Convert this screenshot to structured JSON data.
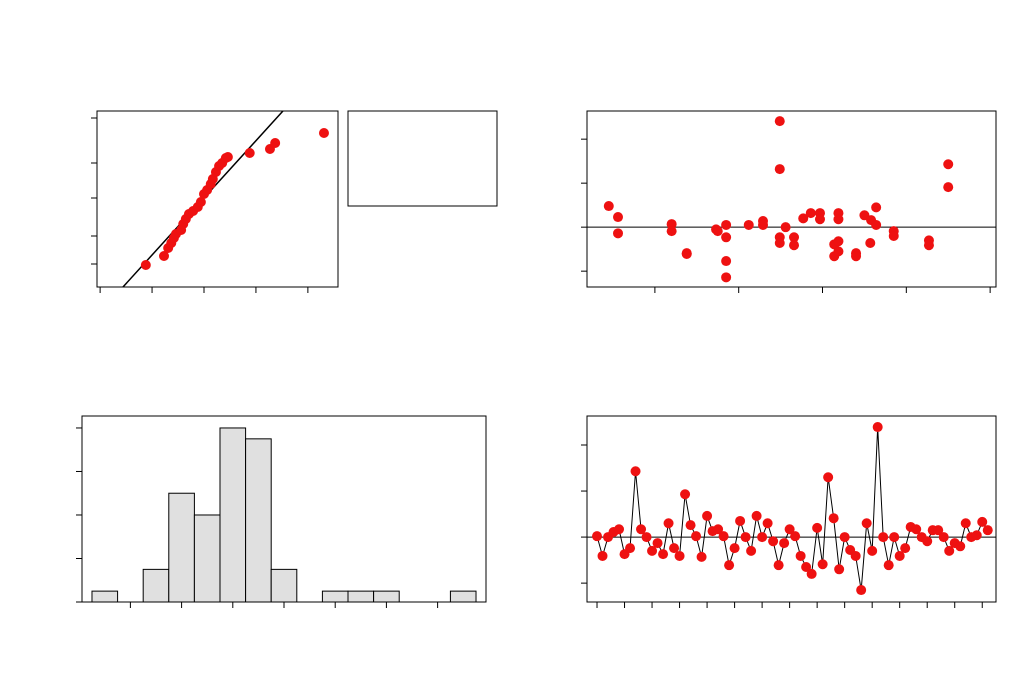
{
  "chart_data": [
    {
      "type": "probability",
      "color": "#ee1111",
      "x": [
        0.88,
        1.23,
        1.31,
        1.37,
        1.42,
        1.46,
        1.56,
        1.6,
        1.65,
        1.71,
        1.79,
        1.88,
        1.94,
        2.0,
        2.06,
        2.13,
        2.17,
        2.23,
        2.29,
        2.35,
        2.42,
        2.46,
        2.88,
        3.27,
        3.37,
        4.31
      ],
      "y": [
        2.2,
        3.1,
        3.9,
        4.4,
        4.9,
        5.3,
        5.7,
        6.3,
        6.8,
        7.3,
        7.6,
        8.0,
        8.5,
        9.3,
        9.7,
        10.3,
        10.8,
        11.5,
        12.1,
        12.4,
        12.9,
        13.0,
        13.4,
        13.8,
        14.4,
        15.4
      ],
      "fit_line": {
        "x": [
          0.44,
          3.52
        ],
        "y": [
          0,
          17.6
        ]
      },
      "xlim": [
        -0.06,
        4.58
      ],
      "ylim": [
        0,
        17.6
      ],
      "xticks": [
        0,
        1,
        2,
        3,
        4
      ],
      "yticks": [
        2.3,
        5.1,
        8.9,
        12.4,
        16.9
      ]
    },
    {
      "type": "scatter",
      "color": "#ee1111",
      "x": [
        0.45,
        0.56,
        0.56,
        1.2,
        1.2,
        1.38,
        1.38,
        1.73,
        1.75,
        1.85,
        1.85,
        1.85,
        1.85,
        2.12,
        2.29,
        2.29,
        2.49,
        2.49,
        2.49,
        2.49,
        2.56,
        2.66,
        2.66,
        2.77,
        2.86,
        2.97,
        2.97,
        3.14,
        3.14,
        3.19,
        3.19,
        3.19,
        3.19,
        3.4,
        3.4,
        3.5,
        3.57,
        3.58,
        3.64,
        3.64,
        3.85,
        3.85,
        4.27,
        4.27,
        4.5,
        4.5
      ],
      "y": [
        0.48,
        0.23,
        -0.14,
        0.07,
        -0.09,
        -0.59,
        -0.61,
        -0.05,
        -0.09,
        0.05,
        -0.23,
        -0.77,
        -1.14,
        0.05,
        0.14,
        0.05,
        2.41,
        1.32,
        -0.23,
        -0.36,
        0,
        -0.23,
        -0.41,
        0.2,
        0.32,
        0.32,
        0.18,
        -0.39,
        -0.66,
        0.32,
        0.18,
        -0.32,
        -0.55,
        -0.59,
        -0.66,
        0.27,
        -0.36,
        0.16,
        0.45,
        0.05,
        -0.09,
        -0.2,
        -0.3,
        -0.41,
        1.43,
        0.91
      ],
      "xlim": [
        0.19,
        5.07
      ],
      "ylim": [
        -1.36,
        2.64
      ],
      "xticks": [
        1,
        2,
        3,
        4,
        5
      ],
      "yticks": [
        -1,
        0,
        1,
        2
      ]
    },
    {
      "type": "histogram",
      "color": "#e0e0e0",
      "bins": [
        0,
        1,
        2,
        3,
        4,
        5,
        6,
        7,
        8,
        9,
        10,
        11,
        12,
        13,
        14,
        15
      ],
      "counts": [
        1,
        0,
        3,
        10,
        8,
        16,
        15,
        3,
        0,
        1,
        1,
        1,
        0,
        0,
        1
      ],
      "xlim": [
        -0.39,
        15.39
      ],
      "ylim": [
        0,
        17.1
      ],
      "xticks": [
        1.5,
        3.5,
        5.5,
        7.5,
        9.5,
        11.5,
        13.5
      ],
      "yticks": [
        0,
        4,
        8,
        12,
        16
      ]
    },
    {
      "type": "line",
      "color": "#ee1111",
      "x": [
        1,
        2,
        3,
        4,
        5,
        6,
        7,
        8,
        9,
        10,
        11,
        12,
        13,
        14,
        15,
        16,
        17,
        18,
        19,
        20,
        21,
        22,
        23,
        24,
        25,
        26,
        27,
        28,
        29,
        30,
        31,
        32,
        33,
        34,
        35,
        36,
        37,
        38,
        39,
        40,
        41,
        42,
        43,
        44,
        45,
        46,
        47,
        48,
        49,
        50,
        51,
        52,
        53,
        54,
        55,
        56,
        57,
        58,
        59,
        60,
        61,
        62,
        63,
        64,
        65,
        66,
        67,
        68,
        69,
        70,
        71,
        72
      ],
      "y": [
        0.02,
        -0.41,
        0,
        0.11,
        0.17,
        -0.37,
        -0.24,
        1.43,
        0.17,
        0,
        -0.3,
        -0.13,
        -0.37,
        0.3,
        -0.24,
        -0.41,
        0.93,
        0.26,
        0.02,
        -0.43,
        0.46,
        0.13,
        0.17,
        0.02,
        -0.61,
        -0.24,
        0.35,
        0,
        -0.3,
        0.46,
        0,
        0.3,
        -0.09,
        -0.61,
        -0.13,
        0.17,
        0.02,
        -0.41,
        -0.65,
        -0.8,
        0.2,
        -0.59,
        1.3,
        0.41,
        -0.7,
        0,
        -0.28,
        -0.41,
        -1.15,
        0.3,
        -0.3,
        2.39,
        0,
        -0.61,
        0,
        -0.41,
        -0.24,
        0.22,
        0.17,
        0,
        -0.09,
        0.15,
        0.15,
        0,
        -0.3,
        -0.13,
        -0.2,
        0.3,
        0,
        0.04,
        0.33,
        0.15
      ],
      "xlim": [
        -0.82,
        73.5
      ],
      "ylim": [
        -1.41,
        2.63
      ],
      "xticks": [
        1,
        6,
        11,
        16,
        21,
        26,
        31,
        36,
        41,
        46,
        51,
        56,
        61,
        66,
        71
      ],
      "yticks": [
        -1,
        0,
        1,
        2
      ]
    }
  ]
}
